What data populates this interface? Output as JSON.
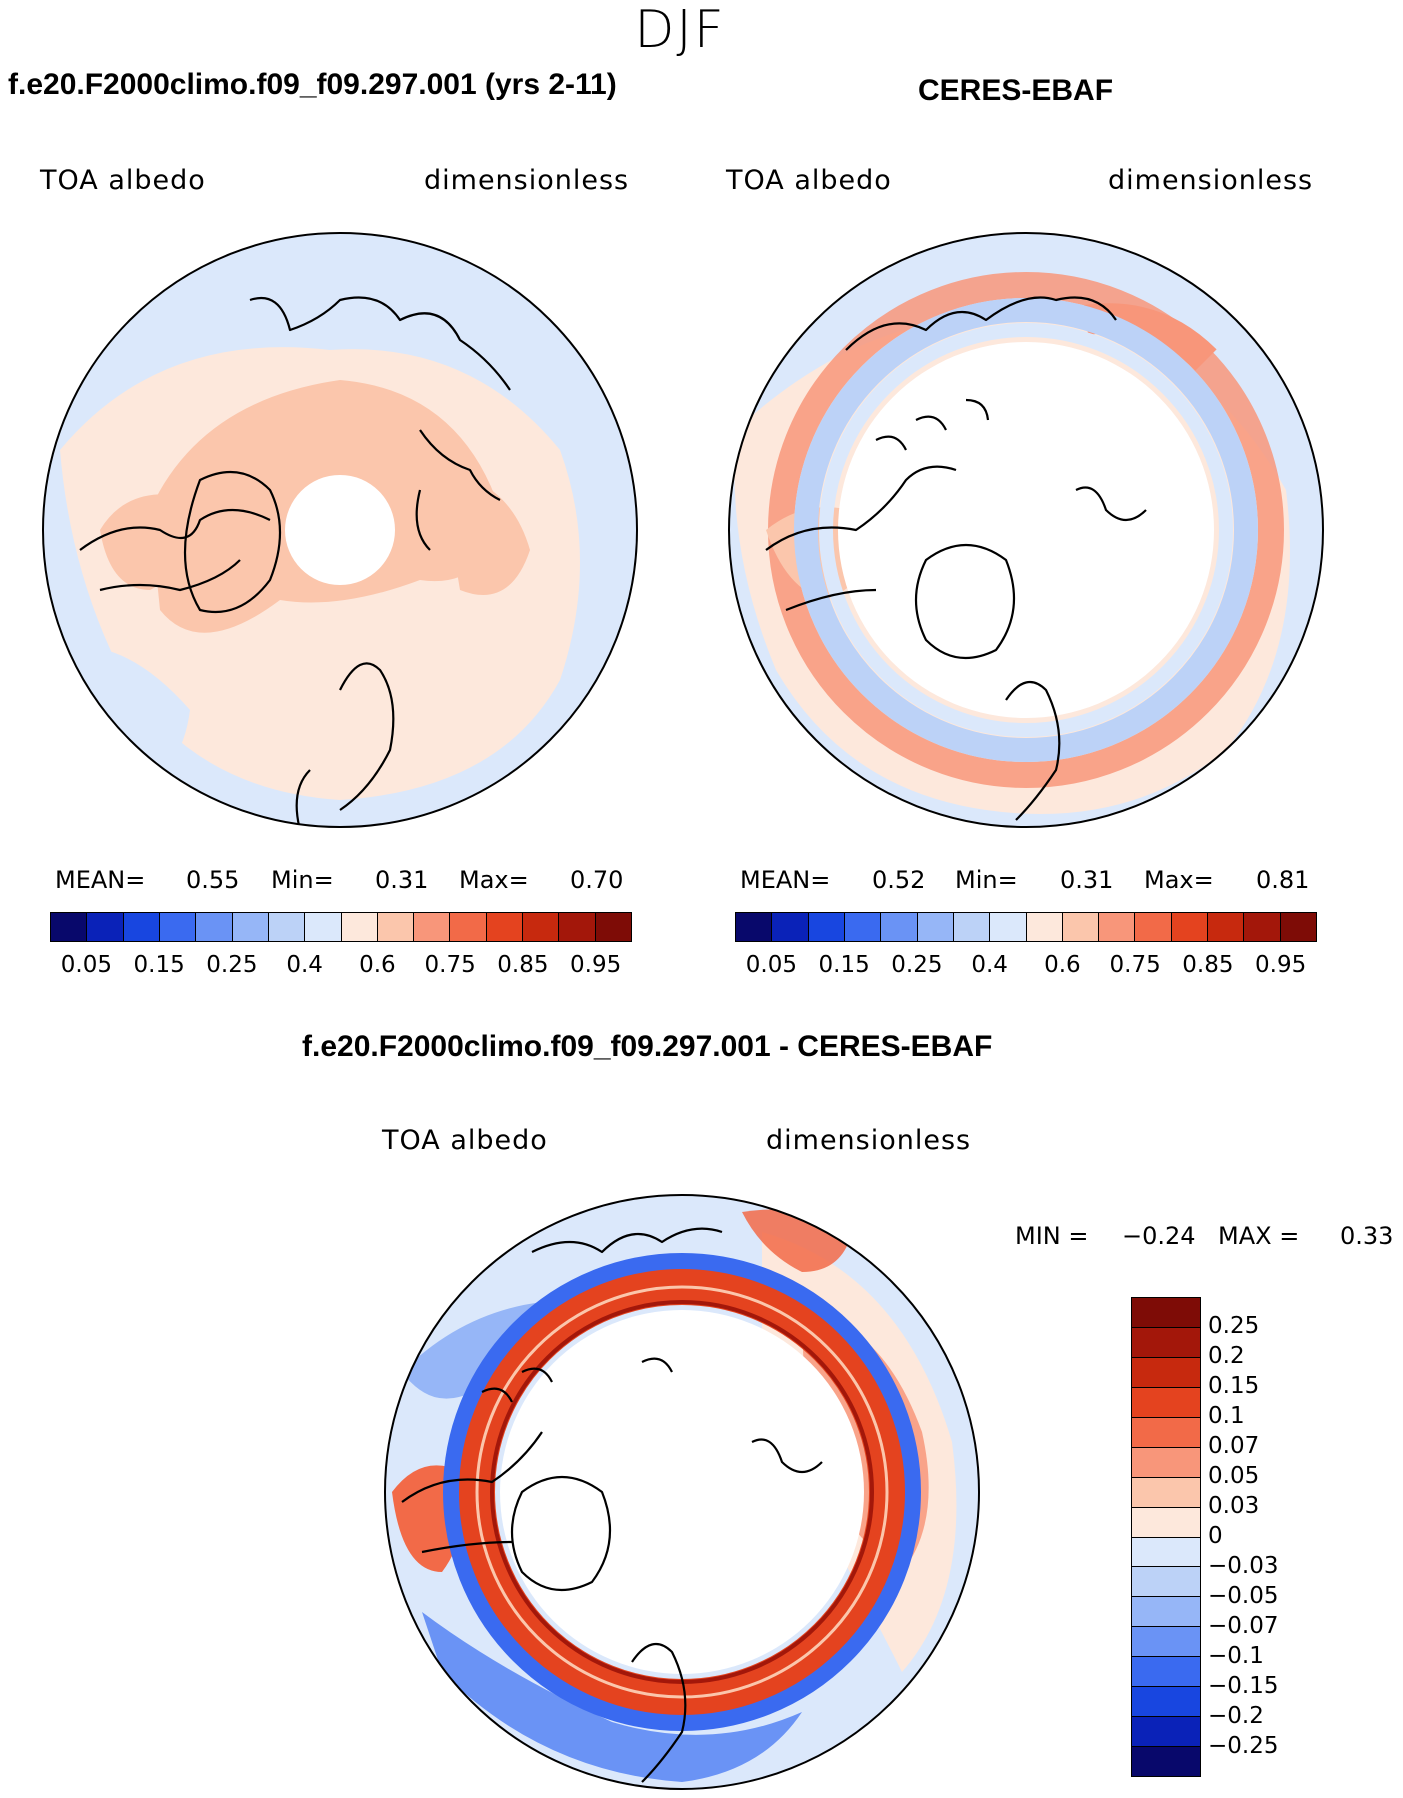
{
  "season": "DJF",
  "panels": {
    "model": {
      "title": "f.e20.F2000climo.f09_f09.297.001 (yrs 2-11)",
      "left_label": "TOA albedo",
      "right_label": "dimensionless",
      "mean_label": "MEAN=",
      "mean": "0.55",
      "min_label": "Min=",
      "min": "0.31",
      "max_label": "Max=",
      "max": "0.70"
    },
    "obs": {
      "title": "CERES-EBAF",
      "left_label": "TOA albedo",
      "right_label": "dimensionless",
      "mean_label": "MEAN=",
      "mean": "0.52",
      "min_label": "Min=",
      "min": "0.31",
      "max_label": "Max=",
      "max": "0.81"
    },
    "diff": {
      "title": "f.e20.F2000climo.f09_f09.297.001 - CERES-EBAF",
      "left_label": "TOA albedo",
      "right_label": "dimensionless",
      "min_label": "MIN =",
      "min": "−0.24",
      "max_label": "MAX =",
      "max": "0.33"
    }
  },
  "abs_colorbar": {
    "colors": [
      "#08086b",
      "#0a22b8",
      "#1846e0",
      "#3a6af0",
      "#6a93f5",
      "#96b6f7",
      "#bcd2f7",
      "#dbe8fb",
      "#fde8dc",
      "#fbc6ac",
      "#f8967a",
      "#f26a48",
      "#e4431f",
      "#c7290e",
      "#a3170a",
      "#7e0c06"
    ],
    "ticks": [
      "0.05",
      "0.15",
      "0.25",
      "0.4",
      "0.6",
      "0.75",
      "0.85",
      "0.95"
    ]
  },
  "diff_colorbar": {
    "colors": [
      "#7e0c06",
      "#a3170a",
      "#c7290e",
      "#e4431f",
      "#f26a48",
      "#f8967a",
      "#fbc6ac",
      "#fde8dc",
      "#dbe8fb",
      "#bcd2f7",
      "#96b6f7",
      "#6a93f5",
      "#3a6af0",
      "#1846e0",
      "#0a22b8",
      "#08086b"
    ],
    "ticks": [
      "0.25",
      "0.2",
      "0.15",
      "0.1",
      "0.07",
      "0.05",
      "0.03",
      "0",
      "−0.03",
      "−0.05",
      "−0.07",
      "−0.1",
      "−0.15",
      "−0.2",
      "−0.25"
    ]
  }
}
